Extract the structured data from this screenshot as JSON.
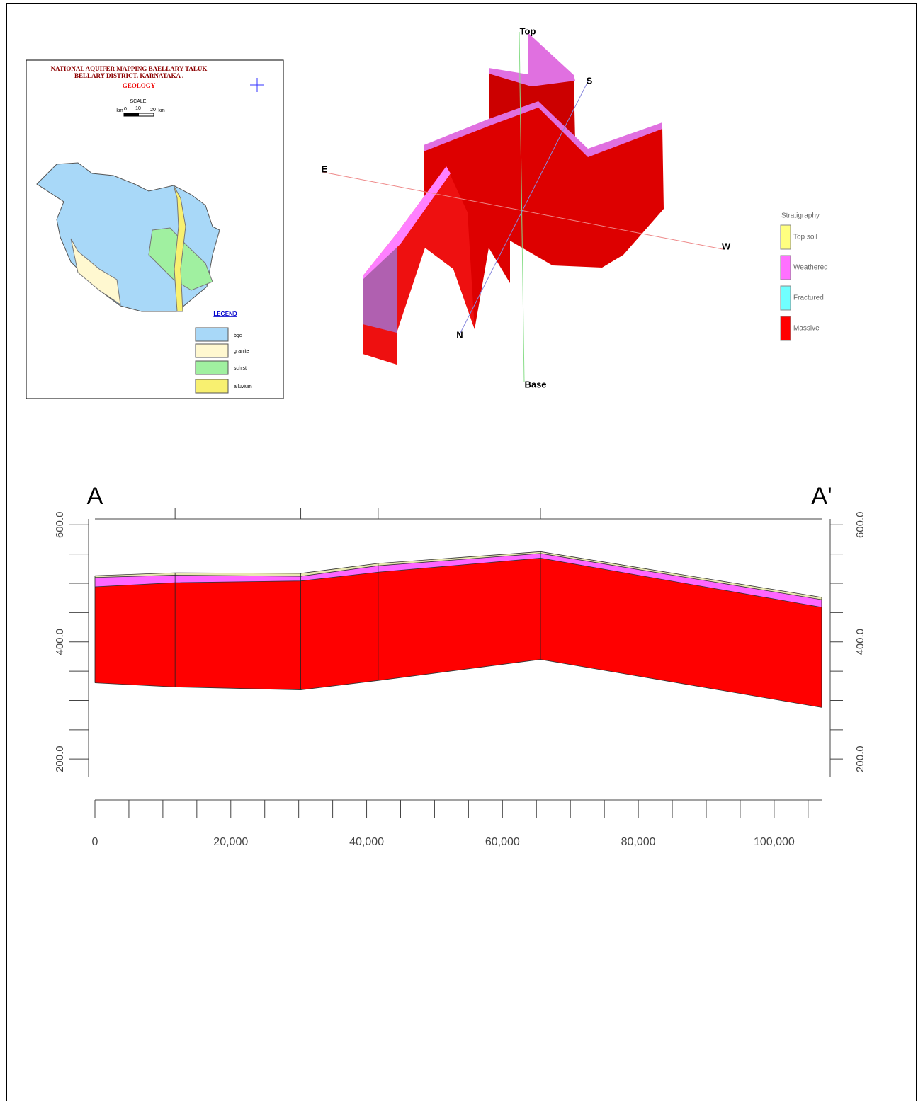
{
  "map": {
    "title_lines": [
      "NATIONAL AQUIFER MAPPING  BAELLARY TALUK",
      "BELLARY DISTRICT. KARNATAKA ."
    ],
    "subtitle": "GEOLOGY",
    "scale_title": "SCALE",
    "scale_labels": [
      "km",
      "0",
      "10",
      "20",
      "km"
    ],
    "legend_title": "LEGEND",
    "legend": [
      "bgc",
      "granite",
      "schist",
      "alluvium"
    ]
  },
  "fence_3d": {
    "axis_labels": [
      "Top",
      "S",
      "E",
      "W",
      "N",
      "Base"
    ],
    "legend_title": "Stratigraphy",
    "legend": [
      {
        "name": "Top soil",
        "color": "#ffff80"
      },
      {
        "name": "Weathered",
        "color": "#ff70ff"
      },
      {
        "name": "Fractured",
        "color": "#70ffff"
      },
      {
        "name": "Massive",
        "color": "#ff0000"
      }
    ]
  },
  "chart_data": {
    "type": "section",
    "section_labels": [
      "A",
      "A'"
    ],
    "x": [
      0,
      11800,
      30300,
      41700,
      65600,
      107000
    ],
    "series": [
      {
        "name": "Top soil",
        "color": "#e8e8b0",
        "values": [
          513,
          518,
          517,
          534,
          554,
          476
        ]
      },
      {
        "name": "Weathered",
        "color": "#ff66ff",
        "values": [
          510,
          514,
          512,
          530,
          551,
          472
        ]
      },
      {
        "name": "Massive",
        "color": "#ff0000",
        "values": [
          494,
          501,
          504,
          519,
          543,
          459
        ]
      }
    ],
    "base": [
      330,
      323,
      318,
      334,
      370,
      288
    ],
    "xlim": [
      0,
      107000
    ],
    "ylim": [
      170,
      610
    ],
    "xticks": [
      0,
      {
        "value": 20000,
        "label": "20,000"
      },
      {
        "value": 40000,
        "label": "40,000"
      },
      {
        "value": 60000,
        "label": "60,000"
      },
      {
        "value": 80000,
        "label": "80,000"
      },
      {
        "value": 100000,
        "label": "100,000"
      }
    ],
    "xticks_minor": [
      5000,
      10000,
      15000,
      25000,
      30000,
      35000,
      45000,
      50000,
      55000,
      65000,
      70000,
      75000,
      85000,
      90000,
      95000,
      105000
    ],
    "yticks": [
      {
        "value": 200,
        "label": "200.0"
      },
      {
        "value": 400,
        "label": "400.0"
      },
      {
        "value": 600,
        "label": "600.0"
      }
    ],
    "yticks_minor": [
      250,
      300,
      350,
      450,
      500,
      550
    ]
  }
}
